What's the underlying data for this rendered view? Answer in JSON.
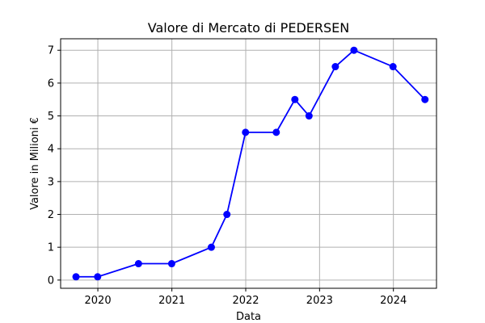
{
  "chart_data": {
    "type": "line",
    "title": "Valore di Mercato di PEDERSEN",
    "xlabel": "Data",
    "ylabel": "Valore in Milioni €",
    "xlim": [
      "2019-07-01",
      "2024-08-01"
    ],
    "ylim": [
      -0.25,
      7.35
    ],
    "x_ticks": [
      {
        "date": "2020-01-01",
        "label": "2020"
      },
      {
        "date": "2021-01-01",
        "label": "2021"
      },
      {
        "date": "2022-01-01",
        "label": "2022"
      },
      {
        "date": "2023-01-01",
        "label": "2023"
      },
      {
        "date": "2024-01-01",
        "label": "2024"
      }
    ],
    "y_ticks": [
      0,
      1,
      2,
      3,
      4,
      5,
      6,
      7
    ],
    "grid": true,
    "color": "#0000ff",
    "series": [
      {
        "x": [
          "2019-09-15",
          "2019-12-31",
          "2020-07-20",
          "2020-12-31",
          "2021-07-15",
          "2021-09-30",
          "2021-12-31",
          "2022-06-01",
          "2022-09-01",
          "2022-11-10",
          "2023-03-20",
          "2023-06-20",
          "2023-12-30",
          "2024-06-05"
        ],
        "values": [
          0.1,
          0.1,
          0.5,
          0.5,
          1.0,
          2.0,
          4.5,
          4.5,
          5.5,
          5.0,
          6.5,
          7.0,
          6.5,
          5.5
        ]
      }
    ]
  }
}
